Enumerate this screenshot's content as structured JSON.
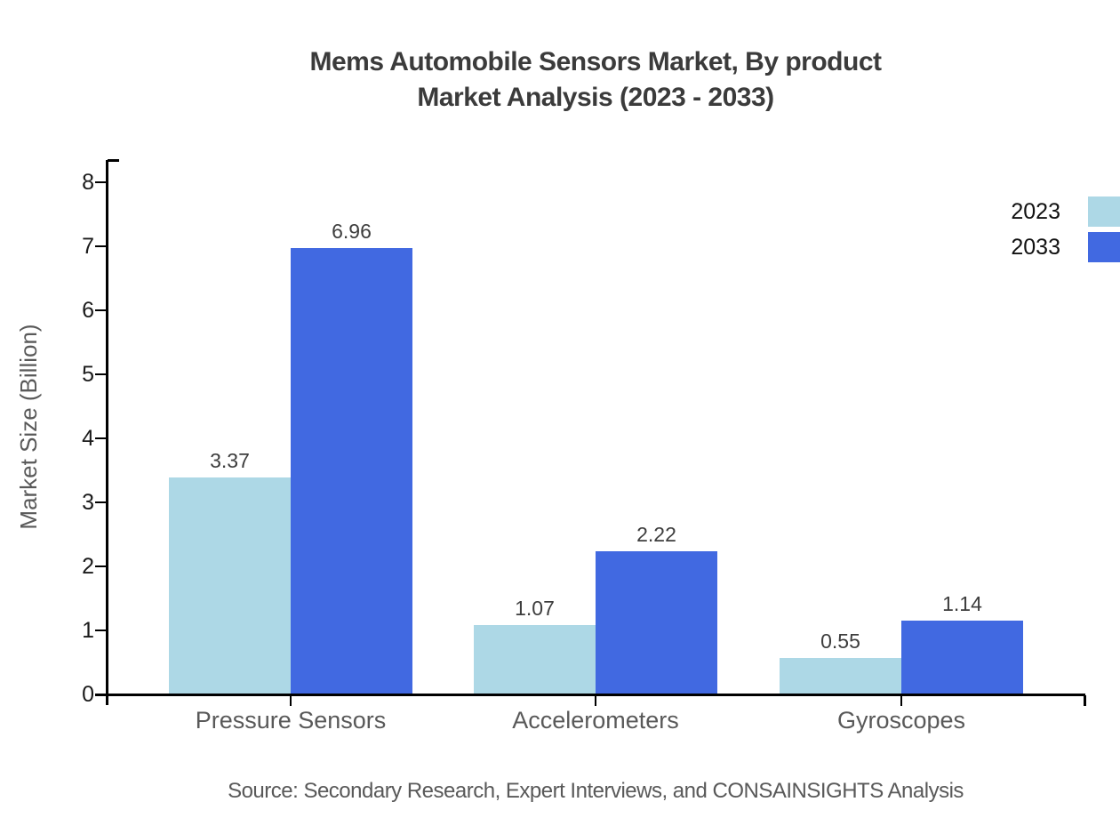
{
  "title": {
    "line1": "Mems Automobile Sensors Market, By product",
    "line2": "Market Analysis (2023 - 2033)"
  },
  "source": "Source: Secondary Research, Expert Interviews, and CONSAINSIGHTS Analysis",
  "legend": {
    "position": "right",
    "items": [
      {
        "label": "2023",
        "color": "#ADD8E6"
      },
      {
        "label": "2033",
        "color": "#4169E1"
      }
    ]
  },
  "colors": {
    "series_2023": "#ADD8E6",
    "series_2033": "#4169E1",
    "axis": "#000000",
    "title_text": "#3b3b3b",
    "muted_text": "#595959",
    "tick_text": "#1a1a1a"
  },
  "chart_data": {
    "type": "bar",
    "title": "Mems Automobile Sensors Market, By product Market Analysis (2023 - 2033)",
    "categories": [
      "Pressure Sensors",
      "Accelerometers",
      "Gyroscopes"
    ],
    "series": [
      {
        "name": "2023",
        "color": "#ADD8E6",
        "values": [
          3.37,
          1.07,
          0.55
        ]
      },
      {
        "name": "2033",
        "color": "#4169E1",
        "values": [
          6.96,
          2.22,
          1.14
        ]
      }
    ],
    "value_labels": [
      [
        "3.37",
        "1.07",
        "0.55"
      ],
      [
        "6.96",
        "2.22",
        "1.14"
      ]
    ],
    "xlabel": "",
    "ylabel": "Market Size (Billion)",
    "yticks": [
      0,
      1,
      2,
      3,
      4,
      5,
      6,
      7,
      8
    ],
    "ylim": [
      0,
      8.35
    ],
    "grid": false,
    "legend_position": "right",
    "source": "Source: Secondary Research, Expert Interviews, and CONSAINSIGHTS Analysis"
  }
}
